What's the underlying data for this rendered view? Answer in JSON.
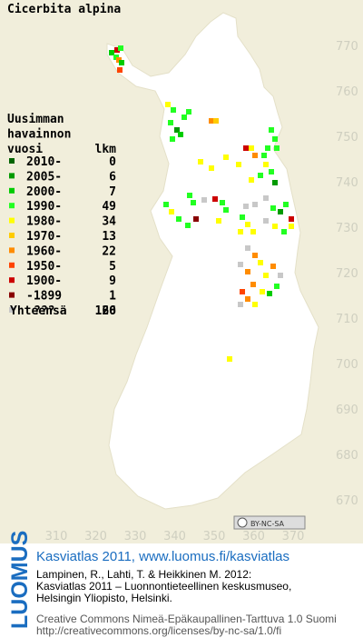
{
  "title": "Cicerbita alpina",
  "legend": {
    "heading": [
      "Uusimman",
      "havainnon",
      "vuosi"
    ],
    "count_heading": "lkm",
    "rows": [
      {
        "period": "2010-",
        "count": 0,
        "color": "#006400"
      },
      {
        "period": "2005-",
        "count": 6,
        "color": "#009a00"
      },
      {
        "period": "2000-",
        "count": 7,
        "color": "#00cc00"
      },
      {
        "period": "1990-",
        "count": 49,
        "color": "#22ff22"
      },
      {
        "period": "1980-",
        "count": 34,
        "color": "#ffff00"
      },
      {
        "period": "1970-",
        "count": 13,
        "color": "#ffcc00"
      },
      {
        "period": "1960-",
        "count": 22,
        "color": "#ff8c00"
      },
      {
        "period": "1950-",
        "count": 5,
        "color": "#ff4400"
      },
      {
        "period": "1900-",
        "count": 9,
        "color": "#cc0000"
      },
      {
        "period": "-1899",
        "count": 1,
        "color": "#880000"
      },
      {
        "period": "???",
        "count": 20,
        "color": "#c8c8c8"
      }
    ],
    "total_label": "Yhteensä",
    "total": 166
  },
  "map": {
    "x_labels": [
      310,
      320,
      330,
      340,
      350,
      360,
      370
    ],
    "y_labels": [
      770,
      760,
      750,
      740,
      730,
      720,
      710,
      700,
      690,
      680,
      670
    ],
    "license_badge": "BY-NC-SA"
  },
  "footer": {
    "logo": "LUOMUS",
    "heading": "Kasviatlas 2011, www.luomus.fi/kasviatlas",
    "citation": [
      "Lampinen, R., Lahti, T. & Heikkinen M. 2012:",
      "Kasviatlas 2011 – Luonnontieteellinen keskusmuseo,",
      "Helsingin Yliopisto, Helsinki."
    ],
    "license": [
      "Creative Commons Nimeä-Epäkaupallinen-Tarttuva 1.0 Suomi",
      "http://creativecommons.org/licenses/by-nc-sa/1.0/fi"
    ]
  }
}
